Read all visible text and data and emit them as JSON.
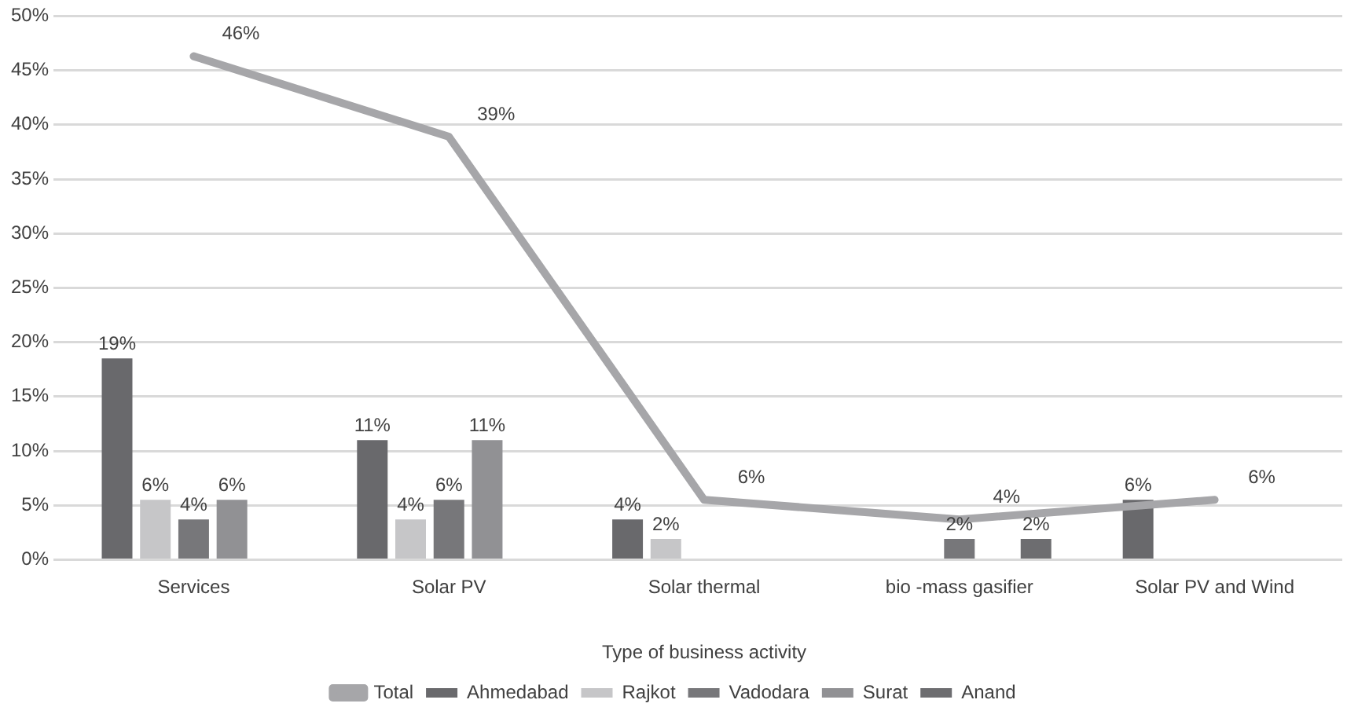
{
  "chart_data": {
    "type": "bar",
    "xlabel": "Type of business activity",
    "categories": [
      "Services",
      "Solar PV",
      "Solar thermal",
      "bio -mass gasifier",
      "Solar PV and Wind"
    ],
    "series": [
      {
        "name": "Ahmedabad",
        "color": "#69696c",
        "values": [
          18.5,
          11,
          3.7,
          null,
          5.5
        ],
        "value_labels": [
          "19%",
          "11%",
          "4%",
          null,
          "6%"
        ]
      },
      {
        "name": "Rajkot",
        "color": "#c6c6c8",
        "values": [
          5.5,
          3.7,
          1.9,
          null,
          null
        ],
        "value_labels": [
          "6%",
          "4%",
          "2%",
          null,
          null
        ]
      },
      {
        "name": "Vadodara",
        "color": "#77777a",
        "values": [
          3.7,
          5.5,
          null,
          1.9,
          null
        ],
        "value_labels": [
          "4%",
          "6%",
          null,
          "2%",
          null
        ]
      },
      {
        "name": "Surat",
        "color": "#919194",
        "values": [
          5.5,
          11,
          null,
          null,
          null
        ],
        "value_labels": [
          "6%",
          "11%",
          null,
          null,
          null
        ]
      },
      {
        "name": "Anand",
        "color": "#6d6d70",
        "values": [
          null,
          null,
          null,
          1.9,
          null
        ],
        "value_labels": [
          null,
          null,
          null,
          "2%",
          null
        ]
      },
      {
        "name": "Total",
        "type": "line",
        "color": "#a6a6a9",
        "values": [
          46.3,
          38.9,
          5.5,
          3.7,
          5.5
        ],
        "value_labels": [
          "46%",
          "39%",
          "6%",
          "4%",
          "6%"
        ]
      }
    ],
    "ylim": [
      0,
      50
    ],
    "yticks": [
      {
        "value": 0,
        "label": "0%"
      },
      {
        "value": 5,
        "label": "5%"
      },
      {
        "value": 10,
        "label": "10%"
      },
      {
        "value": 15,
        "label": "15%"
      },
      {
        "value": 20,
        "label": "20%"
      },
      {
        "value": 25,
        "label": "25%"
      },
      {
        "value": 30,
        "label": "30%"
      },
      {
        "value": 35,
        "label": "35%"
      },
      {
        "value": 40,
        "label": "40%"
      },
      {
        "value": 45,
        "label": "45%"
      },
      {
        "value": 50,
        "label": "50%"
      }
    ],
    "grid": "y",
    "legend": "bottom",
    "marker": "none"
  }
}
